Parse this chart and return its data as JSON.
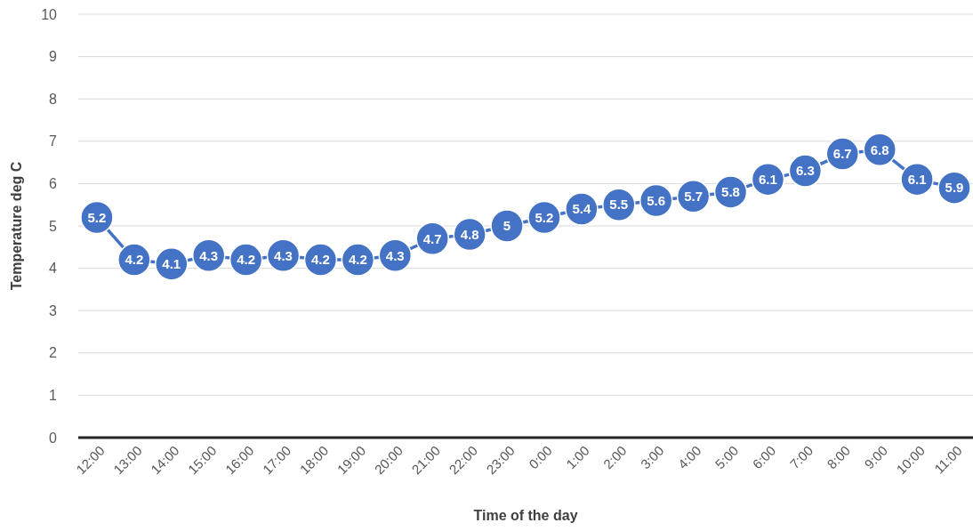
{
  "chart_data": {
    "type": "line",
    "xlabel": "Time of the day",
    "ylabel": "Temperature deg C",
    "categories": [
      "12:00",
      "13:00",
      "14:00",
      "15:00",
      "16:00",
      "17:00",
      "18:00",
      "19:00",
      "20:00",
      "21:00",
      "22:00",
      "23:00",
      "0:00",
      "1:00",
      "2:00",
      "3:00",
      "4:00",
      "5:00",
      "6:00",
      "7:00",
      "8:00",
      "9:00",
      "10:00",
      "11:00"
    ],
    "series": [
      {
        "color": "#4472c4",
        "values": [
          5.2,
          4.2,
          4.1,
          4.3,
          4.2,
          4.3,
          4.2,
          4.2,
          4.3,
          4.7,
          4.8,
          5,
          5.2,
          5.4,
          5.5,
          5.6,
          5.7,
          5.8,
          6.1,
          6.3,
          6.7,
          6.8,
          6.1,
          5.9
        ]
      }
    ],
    "ylim": [
      0,
      10
    ],
    "yticks": [
      0,
      1,
      2,
      3,
      4,
      5,
      6,
      7,
      8,
      9,
      10
    ],
    "grid": "y",
    "marker": "circle",
    "data_labels": true
  }
}
